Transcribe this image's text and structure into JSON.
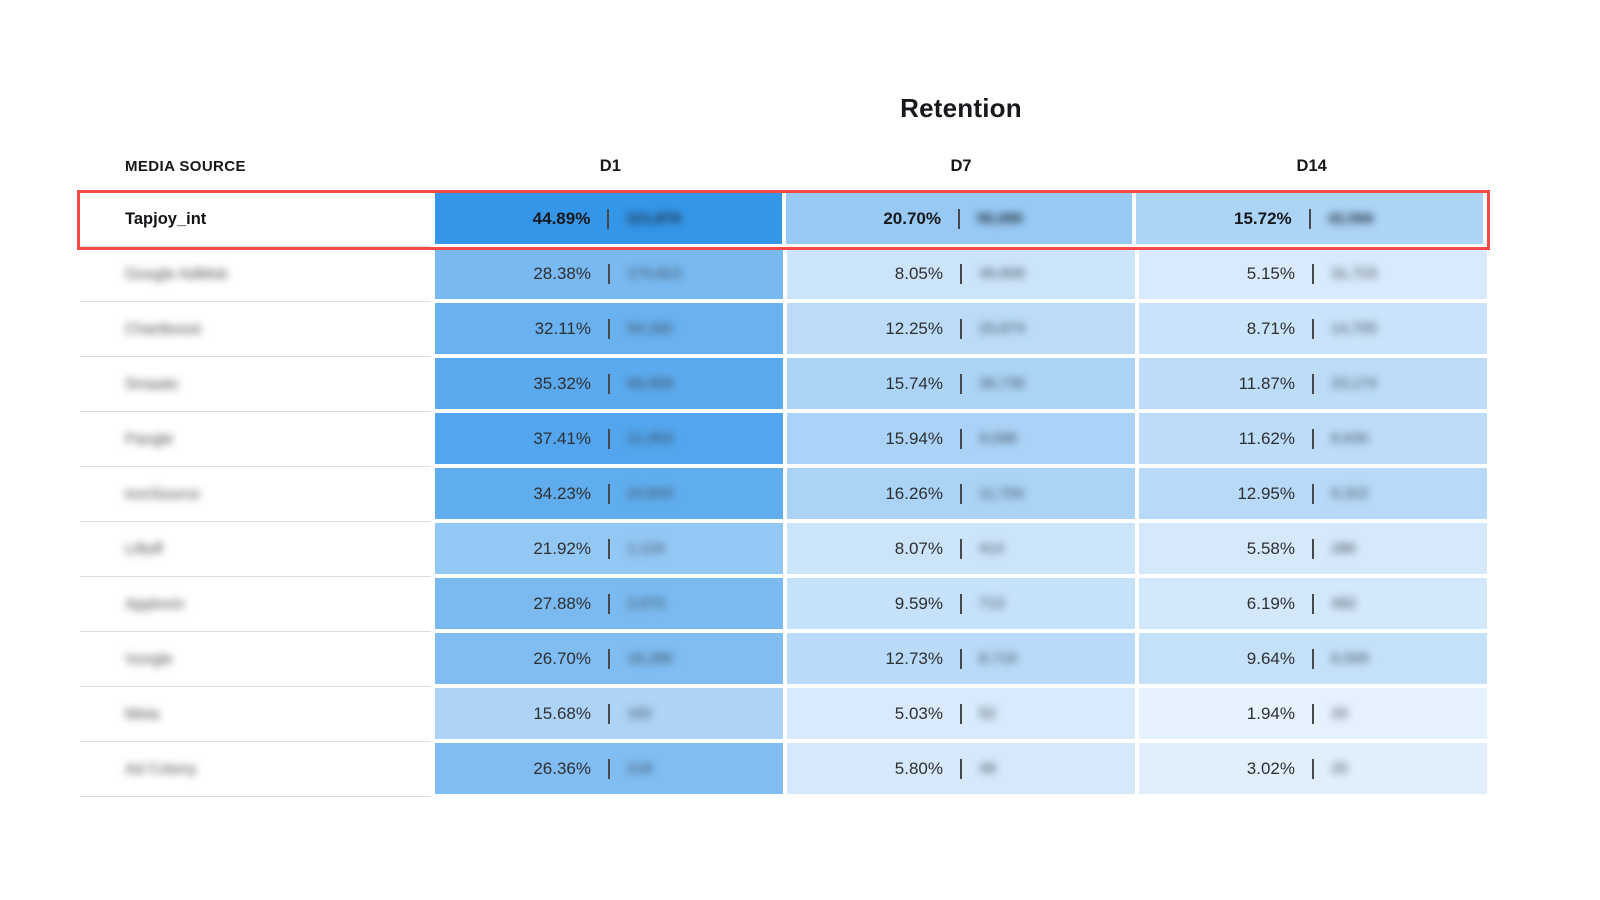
{
  "chart_data": {
    "type": "table",
    "title": "Retention",
    "column_headers": {
      "media_source": "MEDIA SOURCE",
      "d1": "D1",
      "d7": "D7",
      "d14": "D14"
    },
    "cohort_days": [
      "D1",
      "D7",
      "D14"
    ],
    "heatmap_scale": {
      "min_value": 0,
      "max_value": 45,
      "min_color": "#edf5fe",
      "max_color": "#3496e9"
    },
    "highlight": {
      "row": "Tapjoy_int",
      "border_color": "#f24b45"
    },
    "counts_blurred": true,
    "rows": [
      {
        "media_source": "Tapjoy_int",
        "name_blurred": false,
        "highlighted": true,
        "cells": [
          {
            "day": "D1",
            "retention_pct": 44.89,
            "pct_label": "44.89%",
            "count_label": "121,879"
          },
          {
            "day": "D7",
            "retention_pct": 20.7,
            "pct_label": "20.70%",
            "count_label": "56,080"
          },
          {
            "day": "D14",
            "retention_pct": 15.72,
            "pct_label": "15.72%",
            "count_label": "42,566"
          }
        ]
      },
      {
        "media_source": "Google AdMob",
        "name_blurred": true,
        "highlighted": false,
        "cells": [
          {
            "day": "D1",
            "retention_pct": 28.38,
            "pct_label": "28.38%",
            "count_label": "174,813"
          },
          {
            "day": "D7",
            "retention_pct": 8.05,
            "pct_label": "8.05%",
            "count_label": "49,609"
          },
          {
            "day": "D14",
            "retention_pct": 5.15,
            "pct_label": "5.15%",
            "count_label": "31,723"
          }
        ]
      },
      {
        "media_source": "Chartboost",
        "name_blurred": true,
        "highlighted": false,
        "cells": [
          {
            "day": "D1",
            "retention_pct": 32.11,
            "pct_label": "32.11%",
            "count_label": "54,182"
          },
          {
            "day": "D7",
            "retention_pct": 12.25,
            "pct_label": "12.25%",
            "count_label": "20,674"
          },
          {
            "day": "D14",
            "retention_pct": 8.71,
            "pct_label": "8.71%",
            "count_label": "14,705"
          }
        ]
      },
      {
        "media_source": "Smaato",
        "name_blurred": true,
        "highlighted": false,
        "cells": [
          {
            "day": "D1",
            "retention_pct": 35.32,
            "pct_label": "35.32%",
            "count_label": "68,958"
          },
          {
            "day": "D7",
            "retention_pct": 15.74,
            "pct_label": "15.74%",
            "count_label": "30,735"
          },
          {
            "day": "D14",
            "retention_pct": 11.87,
            "pct_label": "11.87%",
            "count_label": "23,174"
          }
        ]
      },
      {
        "media_source": "Pangle",
        "name_blurred": true,
        "highlighted": false,
        "cells": [
          {
            "day": "D1",
            "retention_pct": 37.41,
            "pct_label": "37.41%",
            "count_label": "21,953"
          },
          {
            "day": "D7",
            "retention_pct": 15.94,
            "pct_label": "15.94%",
            "count_label": "9,098"
          },
          {
            "day": "D14",
            "retention_pct": 11.62,
            "pct_label": "11.62%",
            "count_label": "6,630"
          }
        ]
      },
      {
        "media_source": "ironSource",
        "name_blurred": true,
        "highlighted": false,
        "cells": [
          {
            "day": "D1",
            "retention_pct": 34.23,
            "pct_label": "34.23%",
            "count_label": "24,843"
          },
          {
            "day": "D7",
            "retention_pct": 16.26,
            "pct_label": "16.26%",
            "count_label": "11,704"
          },
          {
            "day": "D14",
            "retention_pct": 12.95,
            "pct_label": "12.95%",
            "count_label": "9,322"
          }
        ]
      },
      {
        "media_source": "Liftoff",
        "name_blurred": true,
        "highlighted": false,
        "cells": [
          {
            "day": "D1",
            "retention_pct": 21.92,
            "pct_label": "21.92%",
            "count_label": "1,124"
          },
          {
            "day": "D7",
            "retention_pct": 8.07,
            "pct_label": "8.07%",
            "count_label": "414"
          },
          {
            "day": "D14",
            "retention_pct": 5.58,
            "pct_label": "5.58%",
            "count_label": "286"
          }
        ]
      },
      {
        "media_source": "Applovin",
        "name_blurred": true,
        "highlighted": false,
        "cells": [
          {
            "day": "D1",
            "retention_pct": 27.88,
            "pct_label": "27.88%",
            "count_label": "2,073"
          },
          {
            "day": "D7",
            "retention_pct": 9.59,
            "pct_label": "9.59%",
            "count_label": "713"
          },
          {
            "day": "D14",
            "retention_pct": 6.19,
            "pct_label": "6.19%",
            "count_label": "482"
          }
        ]
      },
      {
        "media_source": "Vungle",
        "name_blurred": true,
        "highlighted": false,
        "cells": [
          {
            "day": "D1",
            "retention_pct": 26.7,
            "pct_label": "26.70%",
            "count_label": "18,285"
          },
          {
            "day": "D7",
            "retention_pct": 12.73,
            "pct_label": "12.73%",
            "count_label": "8,719"
          },
          {
            "day": "D14",
            "retention_pct": 9.64,
            "pct_label": "9.64%",
            "count_label": "6,599"
          }
        ]
      },
      {
        "media_source": "Meta",
        "name_blurred": true,
        "highlighted": false,
        "cells": [
          {
            "day": "D1",
            "retention_pct": 15.68,
            "pct_label": "15.68%",
            "count_label": "162"
          },
          {
            "day": "D7",
            "retention_pct": 5.03,
            "pct_label": "5.03%",
            "count_label": "52"
          },
          {
            "day": "D14",
            "retention_pct": 1.94,
            "pct_label": "1.94%",
            "count_label": "20"
          }
        ]
      },
      {
        "media_source": "Ad Colony",
        "name_blurred": true,
        "highlighted": false,
        "cells": [
          {
            "day": "D1",
            "retention_pct": 26.36,
            "pct_label": "26.36%",
            "count_label": "218"
          },
          {
            "day": "D7",
            "retention_pct": 5.8,
            "pct_label": "5.80%",
            "count_label": "48"
          },
          {
            "day": "D14",
            "retention_pct": 3.02,
            "pct_label": "3.02%",
            "count_label": "25"
          }
        ]
      }
    ]
  }
}
